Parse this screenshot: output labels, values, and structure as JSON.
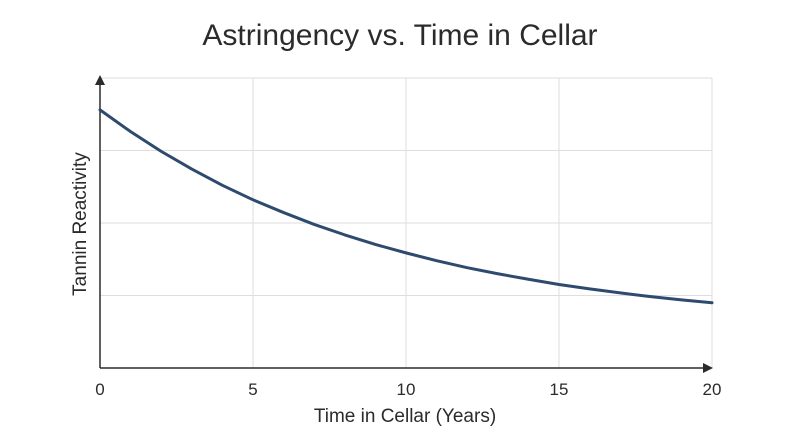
{
  "chart_data": {
    "type": "line",
    "title": "Astringency vs. Time in Cellar",
    "xlabel": "Time in Cellar (Years)",
    "ylabel": "Tannin Reactivity",
    "xlim": [
      0,
      20
    ],
    "ylim": [
      0,
      100
    ],
    "x_ticks": [
      0,
      5,
      10,
      15,
      20
    ],
    "y_tick_labels_shown": false,
    "grid": true,
    "series": [
      {
        "color": "#2e4a6e",
        "x": [
          0,
          1,
          2,
          3,
          4,
          5,
          6,
          7,
          8,
          9,
          10,
          11,
          12,
          13,
          14,
          15,
          16,
          17,
          18,
          19,
          20
        ],
        "y": [
          89.0,
          81.5,
          74.7,
          68.6,
          63.0,
          58.0,
          53.6,
          49.5,
          45.9,
          42.6,
          39.7,
          37.0,
          34.6,
          32.5,
          30.6,
          28.8,
          27.3,
          25.9,
          24.6,
          23.5,
          22.5
        ]
      }
    ]
  }
}
